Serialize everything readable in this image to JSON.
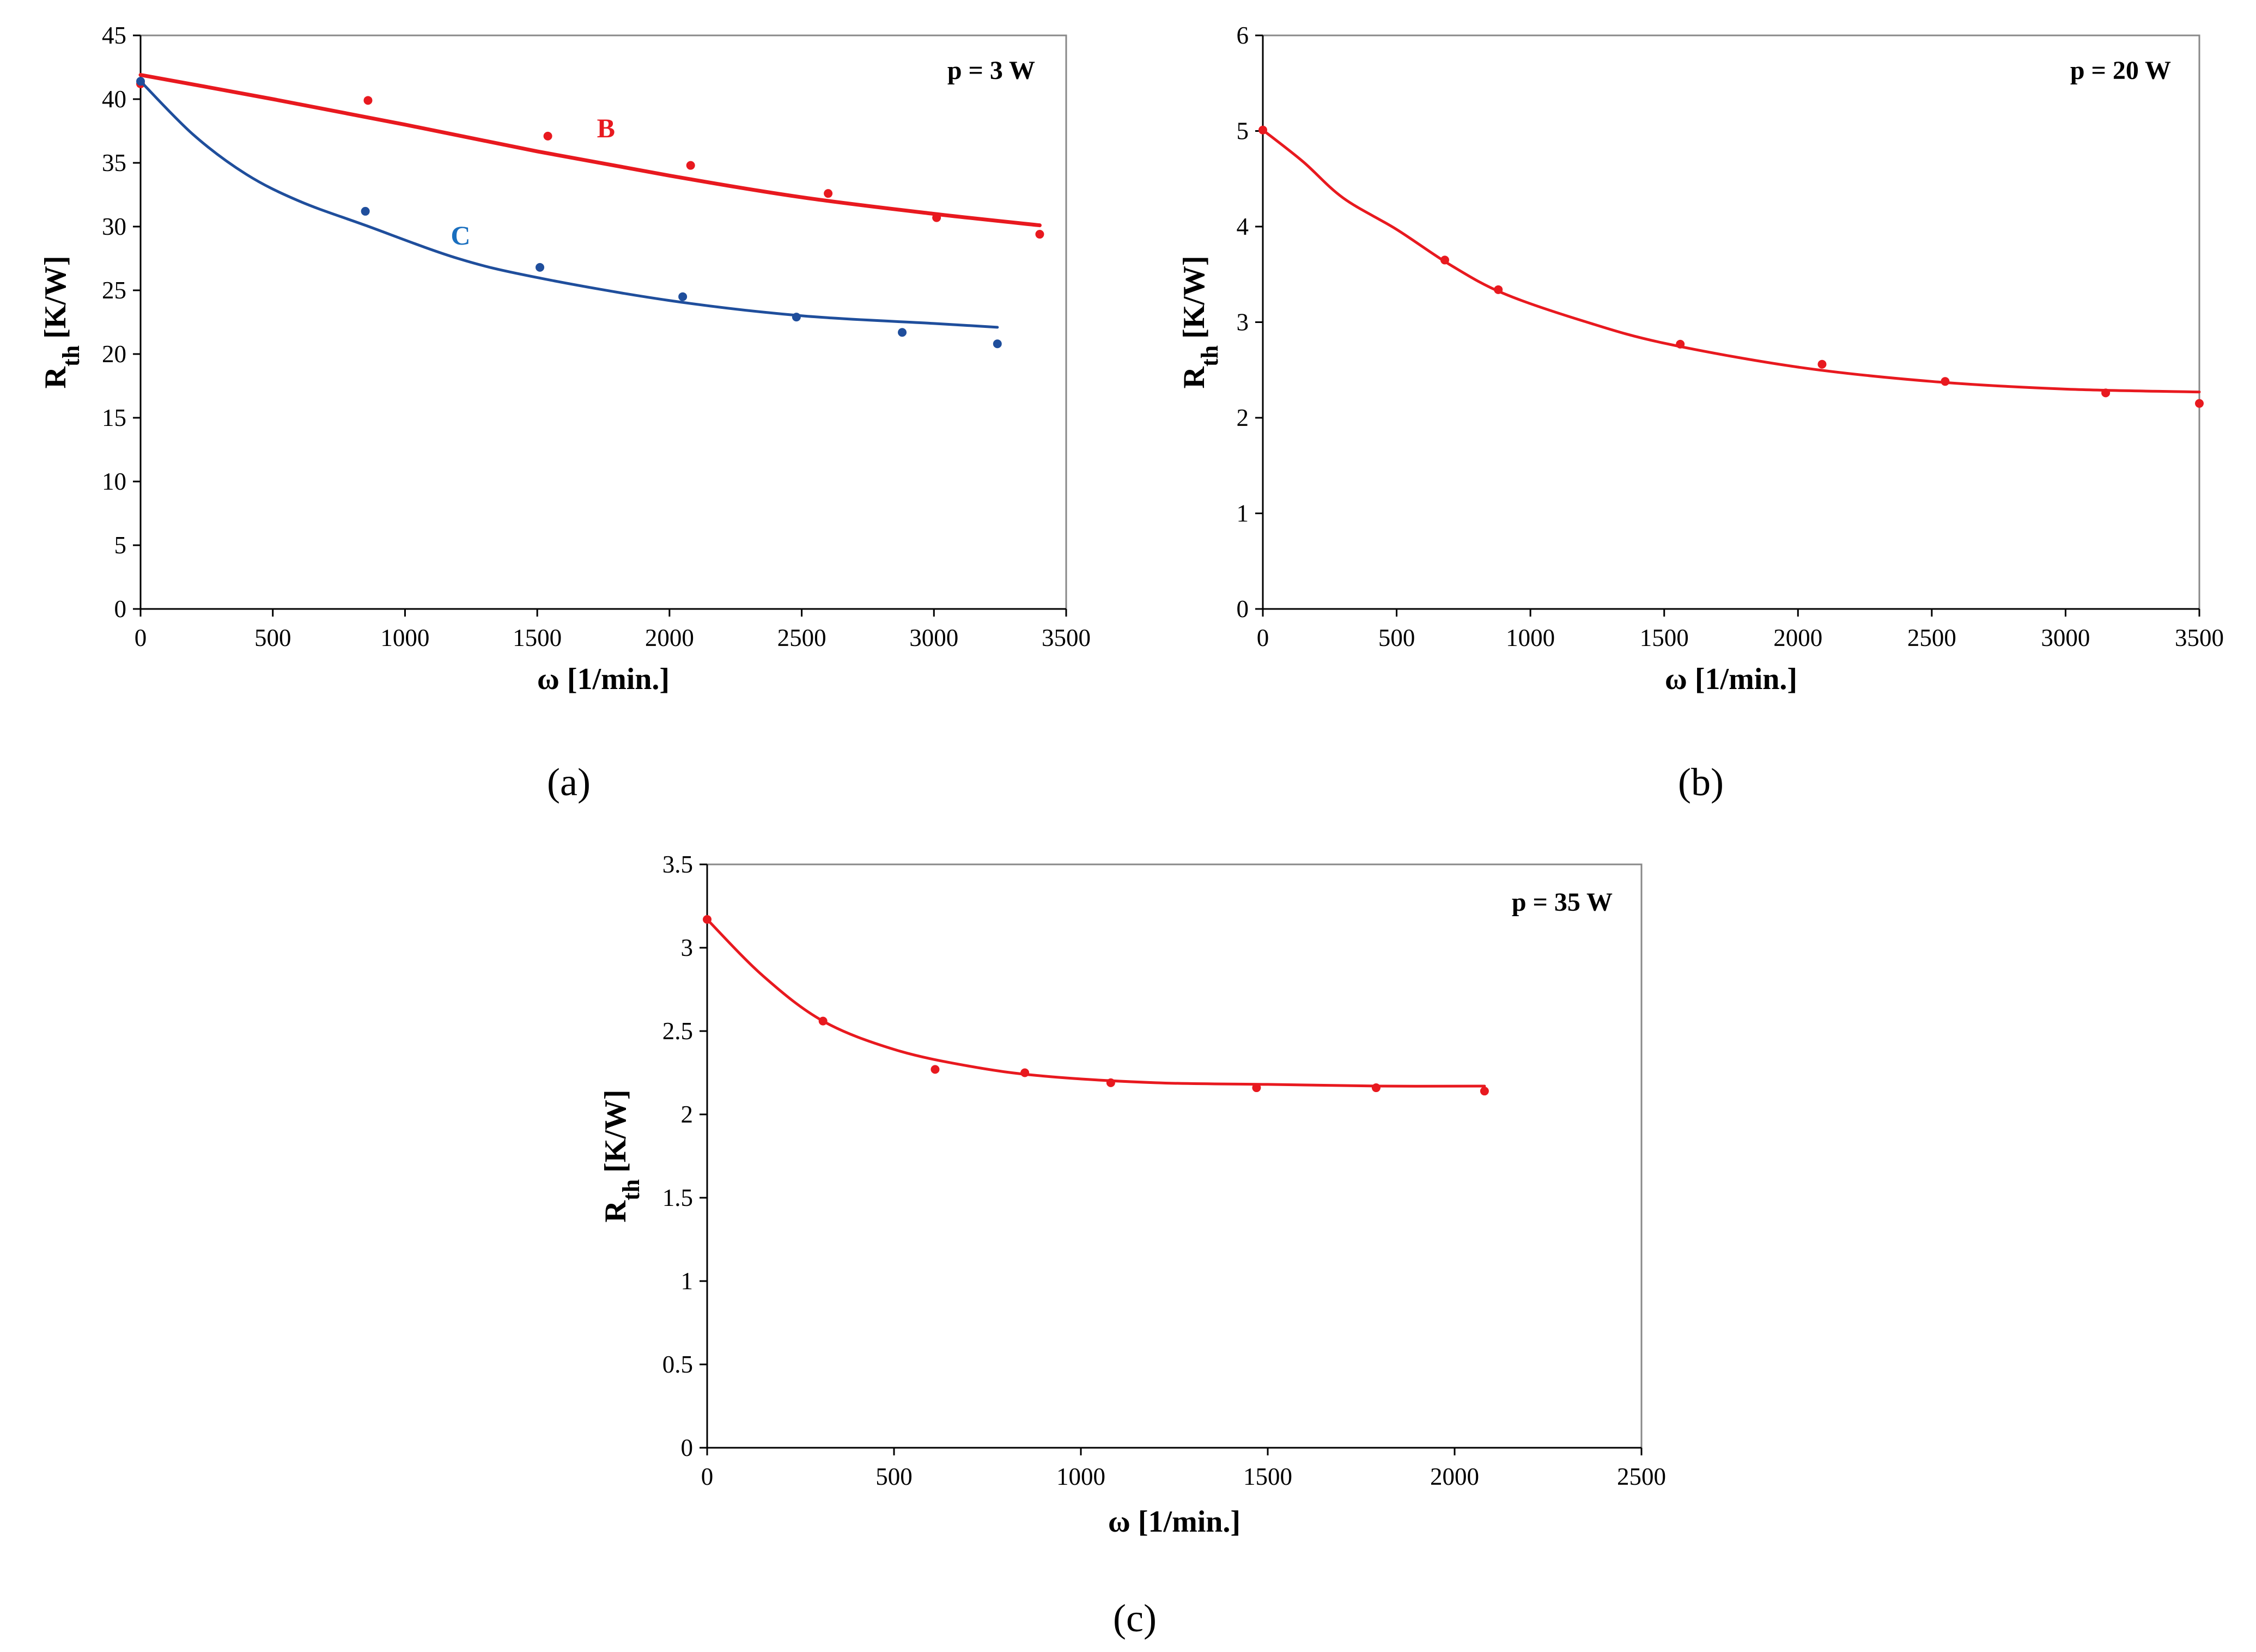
{
  "panels": [
    {
      "label": "(a)"
    },
    {
      "label": "(b)"
    },
    {
      "label": "(c)"
    }
  ],
  "chart_data": [
    {
      "type": "scatter",
      "panel": "(a)",
      "annotation": "p = 3 W",
      "xlabel": "ω [1/min.]",
      "ylabel_main": "R",
      "ylabel_sub": "th",
      "ylabel_unit": "[K/W]",
      "xlim": [
        0,
        3500
      ],
      "ylim": [
        0,
        45
      ],
      "xticks": [
        0,
        500,
        1000,
        1500,
        2000,
        2500,
        3000,
        3500
      ],
      "yticks": [
        0,
        5,
        10,
        15,
        20,
        25,
        30,
        35,
        40,
        45
      ],
      "series": [
        {
          "name": "B",
          "color": "#e8191f",
          "points": [
            [
              0,
              41.2
            ],
            [
              860,
              39.9
            ],
            [
              1540,
              37.1
            ],
            [
              2080,
              34.8
            ],
            [
              2600,
              32.6
            ],
            [
              3010,
              30.7
            ],
            [
              3400,
              29.4
            ]
          ],
          "fit": [
            [
              0,
              41.9
            ],
            [
              500,
              40.0
            ],
            [
              1000,
              38.0
            ],
            [
              1500,
              35.9
            ],
            [
              2000,
              34.0
            ],
            [
              2500,
              32.3
            ],
            [
              3000,
              31.0
            ],
            [
              3400,
              30.1
            ]
          ],
          "label_at": [
            1760,
            37.0
          ]
        },
        {
          "name": "C",
          "color": "#1f4e9c",
          "label_color": "#1a6fbf",
          "points": [
            [
              0,
              41.4
            ],
            [
              850,
              31.2
            ],
            [
              1510,
              26.8
            ],
            [
              2050,
              24.5
            ],
            [
              2480,
              22.9
            ],
            [
              2880,
              21.7
            ],
            [
              3240,
              20.8
            ]
          ],
          "fit": [
            [
              0,
              41.4
            ],
            [
              200,
              37.2
            ],
            [
              400,
              34.1
            ],
            [
              600,
              32.0
            ],
            [
              850,
              30.1
            ],
            [
              1200,
              27.5
            ],
            [
              1500,
              26.0
            ],
            [
              2000,
              24.2
            ],
            [
              2500,
              23.0
            ],
            [
              3000,
              22.4
            ],
            [
              3240,
              22.1
            ]
          ],
          "label_at": [
            1210,
            28.6
          ]
        }
      ]
    },
    {
      "type": "scatter",
      "panel": "(b)",
      "annotation": "p = 20 W",
      "xlabel": "ω [1/min.]",
      "ylabel_main": "R",
      "ylabel_sub": "th",
      "ylabel_unit": "[K/W]",
      "xlim": [
        0,
        3500
      ],
      "ylim": [
        0,
        6
      ],
      "xticks": [
        0,
        500,
        1000,
        1500,
        2000,
        2500,
        3000,
        3500
      ],
      "yticks": [
        0,
        1,
        2,
        3,
        4,
        5,
        6
      ],
      "series": [
        {
          "name": "p = 20 W",
          "color": "#e8191f",
          "points": [
            [
              0,
              5.01
            ],
            [
              680,
              3.65
            ],
            [
              880,
              3.34
            ],
            [
              1560,
              2.77
            ],
            [
              2090,
              2.56
            ],
            [
              2550,
              2.38
            ],
            [
              3150,
              2.26
            ],
            [
              3500,
              2.15
            ]
          ],
          "fit": [
            [
              0,
              5.01
            ],
            [
              150,
              4.68
            ],
            [
              300,
              4.3
            ],
            [
              500,
              3.97
            ],
            [
              700,
              3.6
            ],
            [
              900,
              3.3
            ],
            [
              1200,
              3.01
            ],
            [
              1500,
              2.78
            ],
            [
              2000,
              2.53
            ],
            [
              2500,
              2.38
            ],
            [
              3000,
              2.3
            ],
            [
              3500,
              2.27
            ]
          ]
        }
      ]
    },
    {
      "type": "scatter",
      "panel": "(c)",
      "annotation": "p = 35 W",
      "xlabel": "ω [1/min.]",
      "ylabel_main": "R",
      "ylabel_sub": "th",
      "ylabel_unit": "[K/W]",
      "xlim": [
        0,
        2500
      ],
      "ylim": [
        0,
        3.5
      ],
      "xticks": [
        0,
        500,
        1000,
        1500,
        2000,
        2500
      ],
      "yticks": [
        0,
        0.5,
        1,
        1.5,
        2,
        2.5,
        3,
        3.5
      ],
      "series": [
        {
          "name": "p = 35 W",
          "color": "#e8191f",
          "points": [
            [
              0,
              3.17
            ],
            [
              310,
              2.56
            ],
            [
              610,
              2.27
            ],
            [
              850,
              2.25
            ],
            [
              1080,
              2.19
            ],
            [
              1470,
              2.16
            ],
            [
              1790,
              2.16
            ],
            [
              2080,
              2.14
            ]
          ],
          "fit": [
            [
              0,
              3.17
            ],
            [
              150,
              2.83
            ],
            [
              310,
              2.56
            ],
            [
              500,
              2.39
            ],
            [
              700,
              2.29
            ],
            [
              900,
              2.23
            ],
            [
              1200,
              2.19
            ],
            [
              1500,
              2.18
            ],
            [
              1800,
              2.17
            ],
            [
              2080,
              2.17
            ]
          ]
        }
      ]
    }
  ]
}
